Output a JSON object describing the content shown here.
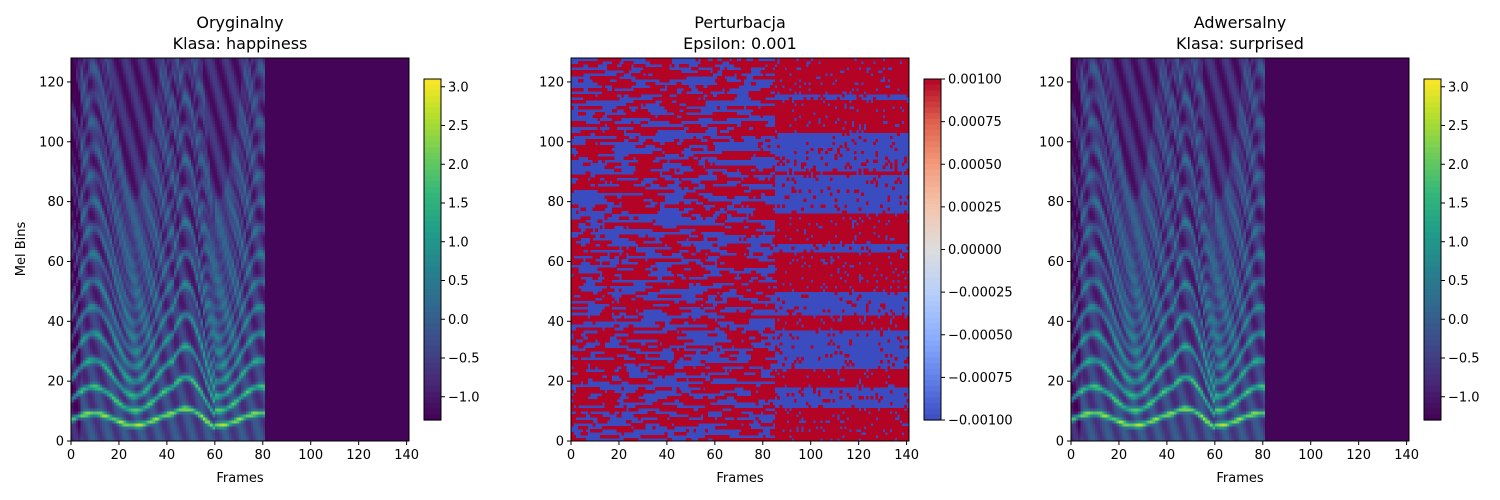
{
  "figure": {
    "panels": [
      {
        "title_line1": "Oryginalny",
        "title_line2": "Klasa: happiness",
        "xlabel": "Frames",
        "ylabel": "Mel Bins"
      },
      {
        "title_line1": "Perturbacja",
        "title_line2": "Epsilon: 0.001",
        "xlabel": "Frames",
        "ylabel": ""
      },
      {
        "title_line1": "Adwersalny",
        "title_line2": "Klasa: surprised",
        "xlabel": "Frames",
        "ylabel": ""
      }
    ]
  },
  "chart_data": [
    {
      "type": "heatmap",
      "title": "Oryginalny\nKlasa: happiness",
      "xlabel": "Frames",
      "ylabel": "Mel Bins",
      "xlim": [
        0,
        141
      ],
      "ylim": [
        0,
        128
      ],
      "x_ticks": [
        "0",
        "20",
        "40",
        "60",
        "80",
        "100",
        "120",
        "140"
      ],
      "y_ticks": [
        "0",
        "20",
        "40",
        "60",
        "80",
        "100",
        "120"
      ],
      "colormap": "viridis",
      "colorbar": {
        "min": -1.3,
        "max": 3.1,
        "ticks": [
          "−1.0",
          "−0.5",
          "0.0",
          "0.5",
          "1.0",
          "1.5",
          "2.0",
          "2.5",
          "3.0"
        ],
        "tick_values": [
          -1.0,
          -0.5,
          0.0,
          0.5,
          1.0,
          1.5,
          2.0,
          2.5,
          3.0
        ]
      },
      "signal_end_frame": 80
    },
    {
      "type": "heatmap",
      "title": "Perturbacja\nEpsilon: 0.001",
      "xlabel": "Frames",
      "ylabel": "",
      "xlim": [
        0,
        141
      ],
      "ylim": [
        0,
        128
      ],
      "x_ticks": [
        "0",
        "20",
        "40",
        "60",
        "80",
        "100",
        "120",
        "140"
      ],
      "y_ticks": [
        "0",
        "20",
        "40",
        "60",
        "80",
        "100",
        "120"
      ],
      "colormap": "coolwarm",
      "colorbar": {
        "min": -0.001,
        "max": 0.001,
        "ticks": [
          "−0.00100",
          "−0.00075",
          "−0.00050",
          "−0.00025",
          "0.00000",
          "0.00025",
          "0.00050",
          "0.00075",
          "0.00100"
        ],
        "tick_values": [
          -0.001,
          -0.00075,
          -0.0005,
          -0.00025,
          0.0,
          0.00025,
          0.0005,
          0.00075,
          0.001
        ]
      },
      "values": "sign pattern of ±0.001"
    },
    {
      "type": "heatmap",
      "title": "Adwersalny\nKlasa: surprised",
      "xlabel": "Frames",
      "ylabel": "",
      "xlim": [
        0,
        141
      ],
      "ylim": [
        0,
        128
      ],
      "x_ticks": [
        "0",
        "20",
        "40",
        "60",
        "80",
        "100",
        "120",
        "140"
      ],
      "y_ticks": [
        "0",
        "20",
        "40",
        "60",
        "80",
        "100",
        "120"
      ],
      "colormap": "viridis",
      "colorbar": {
        "min": -1.3,
        "max": 3.1,
        "ticks": [
          "−1.0",
          "−0.5",
          "0.0",
          "0.5",
          "1.0",
          "1.5",
          "2.0",
          "2.5",
          "3.0"
        ],
        "tick_values": [
          -1.0,
          -0.5,
          0.0,
          0.5,
          1.0,
          1.5,
          2.0,
          2.5,
          3.0
        ]
      },
      "signal_end_frame": 80
    }
  ]
}
